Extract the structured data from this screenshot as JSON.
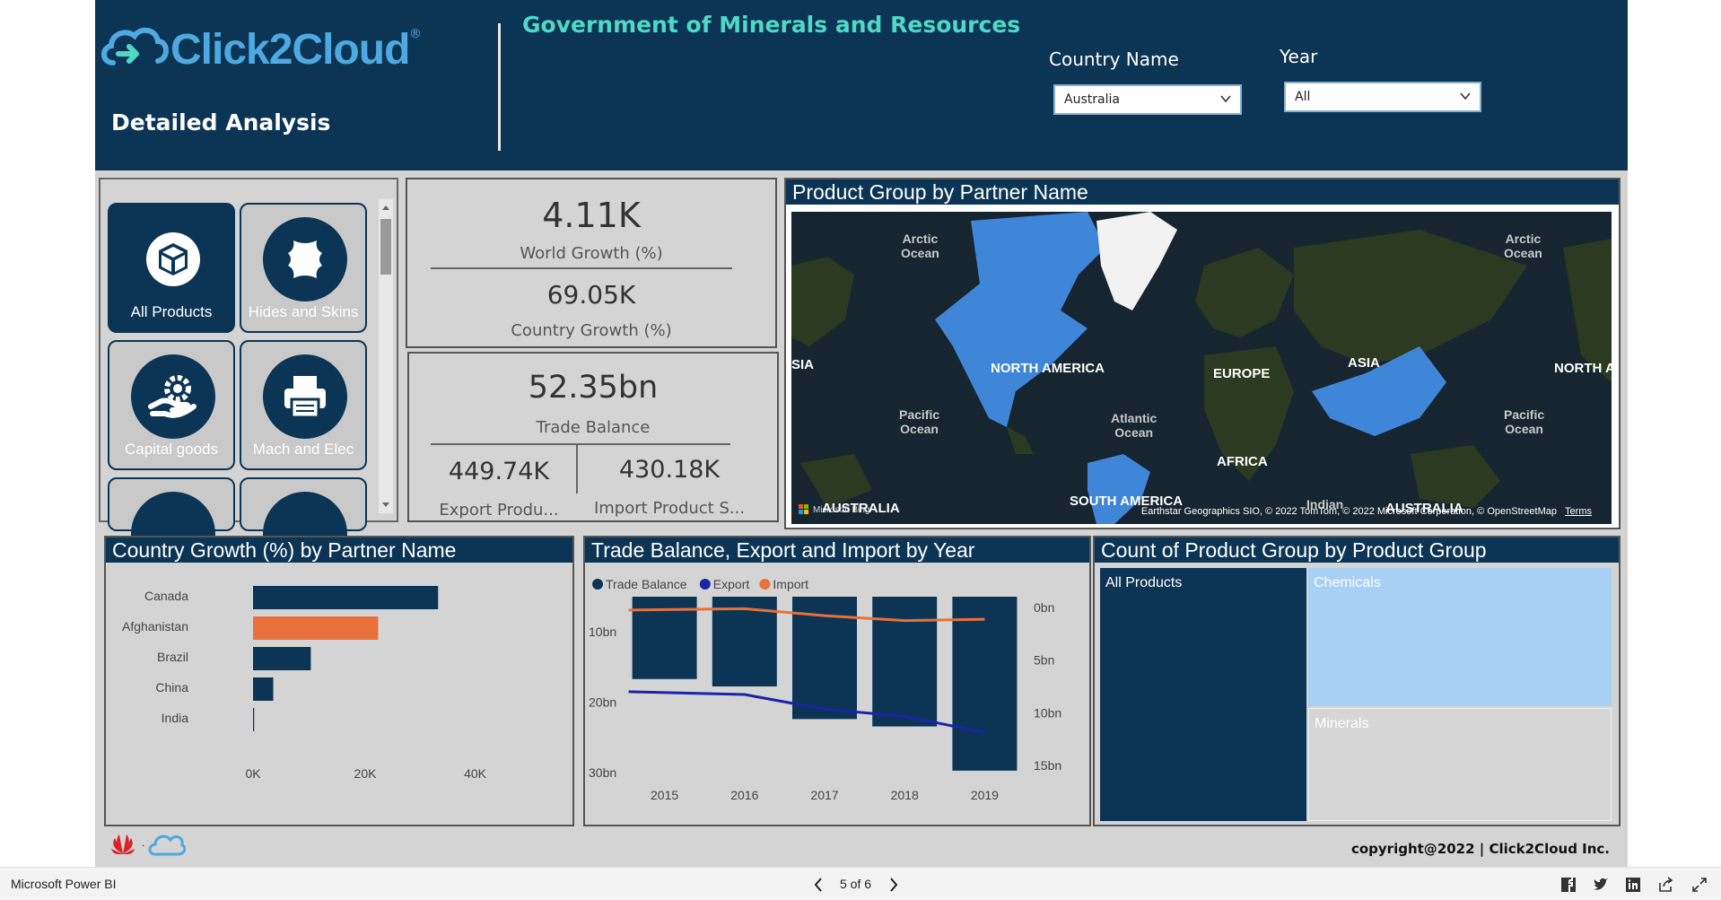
{
  "header": {
    "logo_text": "Click2Cloud",
    "logo_mark": "®",
    "report_subtitle": "Detailed Analysis",
    "report_title": "Government of Minerals and Resources",
    "country_slicer": {
      "label": "Country Name",
      "value": "Australia"
    },
    "year_slicer": {
      "label": "Year",
      "value": "All"
    }
  },
  "product_buttons": [
    {
      "label": "All Products",
      "icon": "cube-icon",
      "active": true
    },
    {
      "label": "Hides and Skins",
      "icon": "hide-icon",
      "active": false
    },
    {
      "label": "Capital goods",
      "icon": "hand-gear-icon",
      "active": false
    },
    {
      "label": "Mach and Elec",
      "icon": "printer-icon",
      "active": false
    }
  ],
  "kpis": {
    "world_growth": {
      "value": "4.11K",
      "label": "World Growth (%)"
    },
    "country_growth": {
      "value": "69.05K",
      "label": "Country Growth (%)"
    },
    "trade_balance": {
      "value": "52.35bn",
      "label": "Trade Balance"
    },
    "export_product": {
      "value": "449.74K",
      "label": "Export Produ..."
    },
    "import_product": {
      "value": "430.18K",
      "label": "Import Product S..."
    }
  },
  "map": {
    "title": "Product Group by Partner Name",
    "continent_labels": [
      "NORTH AMERICA",
      "EUROPE",
      "ASIA",
      "AFRICA",
      "SOUTH AMERICA",
      "AUSTRALIA",
      "AUSTRALIA",
      "SIA",
      "NORTH A"
    ],
    "ocean_labels": [
      "Arctic\nOcean",
      "Arctic\nOcean",
      "Pacific\nOcean",
      "Atlantic\nOcean",
      "Pacific\nOcean",
      "Indian"
    ],
    "attribution": "Earthstar Geographics SIO, © 2022 TomTom, © 2022 Microsoft Corporation, © OpenStreetMap",
    "terms": "Terms",
    "bing": "Microsoft Bing",
    "land_color": "#2c3a22",
    "highlight_color": "#3f86d9",
    "ice_color": "#f2f2f2",
    "ocean_color": "#16252f"
  },
  "country_growth_chart": {
    "title": "Country Growth (%) by Partner Name",
    "chart_data": {
      "type": "bar",
      "orientation": "horizontal",
      "categories": [
        "Canada",
        "Afghanistan",
        "Brazil",
        "China",
        "India"
      ],
      "values": [
        33000,
        22300,
        10300,
        3600,
        200
      ],
      "colors": [
        "#0c3555",
        "#e8703a",
        "#0c3555",
        "#0c3555",
        "#0c3555"
      ],
      "xlim": [
        0,
        40000
      ],
      "xticks": [
        "0K",
        "20K",
        "40K"
      ]
    }
  },
  "trade_chart": {
    "title": "Trade Balance, Export and Import by Year",
    "chart_data": {
      "type": "bar",
      "categories": [
        "2015",
        "2016",
        "2017",
        "2018",
        "2019"
      ],
      "series": [
        {
          "name": "Trade Balance",
          "values": [
            6.8,
            7.5,
            10.6,
            11.3,
            15.5
          ],
          "color": "#0c3555"
        },
        {
          "name": "Export",
          "values": [
            18.5,
            18.9,
            21.0,
            22.0,
            24.3
          ],
          "color": "#1a24a8"
        },
        {
          "name": "Import",
          "values": [
            1.9,
            1.7,
            2.7,
            3.4,
            3.2
          ],
          "color": "#e8703a"
        }
      ],
      "left_axis": {
        "ticks": [
          "10bn",
          "20bn",
          "30bn"
        ],
        "range": [
          5,
          30
        ]
      },
      "right_axis": {
        "ticks": [
          "0bn",
          "5bn",
          "10bn",
          "15bn"
        ],
        "range": [
          0,
          15
        ]
      }
    }
  },
  "treemap": {
    "title": "Count of Product Group by Product Group",
    "chart_data": {
      "type": "treemap",
      "items": [
        {
          "name": "All Products",
          "color": "#0c3555",
          "text_color": "#ffffff"
        },
        {
          "name": "Chemicals",
          "color": "#a8d0f5",
          "text_color": "#ffffff"
        },
        {
          "name": "Minerals",
          "color": "#d6d6d6",
          "text_color": "#ffffff"
        }
      ]
    }
  },
  "footer": {
    "copyright": "copyright@2022 | Click2Cloud Inc.",
    "partner_logo": "HUAWEI",
    "partner_logo2": "Click2Cloud"
  },
  "taskbar": {
    "app_name": "Microsoft Power BI",
    "page_indicator": "5 of 6"
  }
}
